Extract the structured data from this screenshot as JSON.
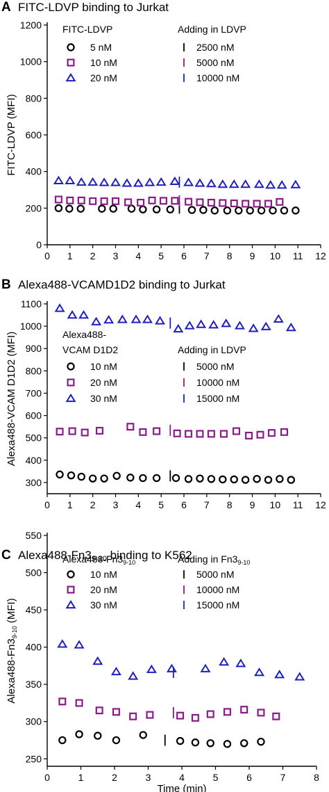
{
  "chart_data": [
    {
      "type": "scatter",
      "panel_label": "A",
      "title": "FITC-LDVP binding to Jurkat",
      "xlabel": "",
      "ylabel": "FITC-LDVP (MFI)",
      "xlim": [
        0,
        12
      ],
      "ylim": [
        0,
        1200
      ],
      "xticks": [
        0,
        1,
        2,
        3,
        4,
        5,
        6,
        7,
        8,
        9,
        10,
        11,
        12
      ],
      "yticks": [
        0,
        200,
        400,
        600,
        800,
        1000,
        1200
      ],
      "legend": {
        "left_title": "FITC-LDVP",
        "right_title": "Adding in LDVP",
        "rows": [
          {
            "color": "#000000",
            "label": "5 nM",
            "add_label": "2500 nM"
          },
          {
            "color": "#8b1a89",
            "label": "10 nM",
            "add_label": "5000 nM"
          },
          {
            "color": "#1f1fbf",
            "label": "20 nM",
            "add_label": "10000 nM"
          }
        ]
      },
      "series": [
        {
          "name": "5 nM",
          "marker": "circle",
          "color": "#000000",
          "x": [
            0.5,
            0.97,
            1.47,
            2.4,
            2.9,
            3.7,
            4.2,
            4.8,
            5.4,
            6.35,
            6.85,
            7.35,
            7.9,
            8.4,
            8.9,
            9.4,
            9.9,
            10.4,
            10.9
          ],
          "y": [
            200,
            197,
            197,
            197,
            197,
            197,
            193,
            193,
            193,
            190,
            190,
            187,
            187,
            187,
            187,
            187,
            187,
            187,
            187
          ]
        },
        {
          "name": "10 nM",
          "marker": "square",
          "color": "#8b1a89",
          "x": [
            0.5,
            1.0,
            1.5,
            2.0,
            2.5,
            3.0,
            3.55,
            4.1,
            4.6,
            5.1,
            5.6,
            6.2,
            6.7,
            7.2,
            7.7,
            8.2,
            8.7,
            9.2,
            9.7,
            10.2
          ],
          "y": [
            247,
            242,
            242,
            238,
            238,
            238,
            232,
            230,
            242,
            240,
            240,
            235,
            232,
            230,
            228,
            226,
            224,
            224,
            224,
            234
          ]
        },
        {
          "name": "20 nM",
          "marker": "triangle",
          "color": "#1f1fbf",
          "x": [
            0.5,
            1.0,
            1.5,
            2.0,
            2.5,
            3.0,
            3.5,
            4.0,
            4.5,
            5.0,
            5.6,
            6.2,
            6.7,
            7.2,
            7.7,
            8.2,
            8.7,
            9.3,
            9.8,
            10.3,
            10.9
          ],
          "y": [
            350,
            350,
            342,
            342,
            340,
            340,
            336,
            336,
            340,
            342,
            346,
            340,
            336,
            334,
            330,
            330,
            330,
            330,
            326,
            326,
            328
          ]
        }
      ],
      "additions": [
        {
          "x": 5.8,
          "y": 200,
          "color": "#000000"
        },
        {
          "x": 5.8,
          "y": 240,
          "color": "#8b1a89"
        },
        {
          "x": 5.8,
          "y": 342,
          "color": "#1f1fbf"
        }
      ]
    },
    {
      "type": "scatter",
      "panel_label": "B",
      "title": "Alexa488-VCAMD1D2 binding to Jurkat",
      "xlabel": "",
      "ylabel": "Alexa488-VCAM D1D2 (MFI)",
      "xlim": [
        0,
        12
      ],
      "ylim": [
        250,
        1100
      ],
      "xticks": [
        0,
        1,
        2,
        3,
        4,
        5,
        6,
        7,
        8,
        9,
        10,
        11,
        12
      ],
      "yticks": [
        300,
        400,
        500,
        600,
        700,
        800,
        900,
        1000,
        1100
      ],
      "legend": {
        "left_title": "Alexa488-",
        "left_title_2": "VCAM D1D2",
        "right_title": "Adding in LDVP",
        "rows": [
          {
            "color": "#000000",
            "label": "10 nM",
            "add_label": "5000 nM"
          },
          {
            "color": "#8b1a89",
            "label": "20 nM",
            "add_label": "10000 nM"
          },
          {
            "color": "#1f1fbf",
            "label": "30 nM",
            "add_label": "15000 nM"
          }
        ]
      },
      "series": [
        {
          "name": "10 nM",
          "marker": "circle",
          "color": "#000000",
          "x": [
            0.55,
            1.05,
            1.5,
            2.0,
            2.5,
            3.05,
            3.65,
            4.2,
            4.8,
            5.65,
            6.2,
            6.7,
            7.2,
            7.7,
            8.2,
            8.7,
            9.2,
            9.7,
            10.2,
            10.7
          ],
          "y": [
            336,
            332,
            326,
            318,
            318,
            330,
            322,
            320,
            320,
            320,
            316,
            318,
            316,
            314,
            314,
            312,
            316,
            312,
            316,
            312
          ]
        },
        {
          "name": "20 nM",
          "marker": "square",
          "color": "#8b1a89",
          "x": [
            0.55,
            1.1,
            1.65,
            2.3,
            3.65,
            4.2,
            4.8,
            5.7,
            6.2,
            6.7,
            7.2,
            7.75,
            8.3,
            8.85,
            9.35,
            9.85,
            10.4
          ],
          "y": [
            528,
            530,
            524,
            532,
            550,
            526,
            530,
            520,
            518,
            518,
            518,
            518,
            530,
            510,
            514,
            522,
            526
          ]
        },
        {
          "name": "30 nM",
          "marker": "triangle",
          "color": "#1f1fbf",
          "x": [
            0.55,
            1.1,
            1.6,
            2.15,
            2.7,
            3.3,
            3.9,
            4.4,
            4.95,
            5.75,
            6.25,
            6.75,
            7.3,
            7.85,
            8.45,
            9.05,
            9.6,
            10.15,
            10.7
          ],
          "y": [
            1080,
            1050,
            1050,
            1020,
            1028,
            1030,
            1030,
            1030,
            1024,
            988,
            1002,
            1008,
            1006,
            1012,
            1002,
            990,
            998,
            1032,
            994
          ]
        }
      ],
      "additions": [
        {
          "x": 5.4,
          "y": 330,
          "color": "#000000"
        },
        {
          "x": 5.4,
          "y": 534,
          "color": "#8b1a89"
        },
        {
          "x": 5.4,
          "y": 1014,
          "color": "#1f1fbf"
        }
      ]
    },
    {
      "type": "scatter",
      "panel_label": "C",
      "title": "Alexa488-Fn3",
      "title_sub": "9-10",
      "title_suffix": " binding to K562",
      "xlabel": "Time (min)",
      "ylabel": "Alexa488-Fn3",
      "ylabel_sub": "9-10",
      "ylabel_suffix": " (MFI)",
      "xlim": [
        0,
        8
      ],
      "ylim": [
        240,
        550
      ],
      "xticks": [
        0,
        1,
        2,
        3,
        4,
        5,
        6,
        7,
        8
      ],
      "yticks": [
        250,
        300,
        350,
        400,
        450,
        500,
        550
      ],
      "legend": {
        "left_title": "Alexa488-Fn3",
        "left_title_sub": "9-10",
        "right_title": "Adding in Fn3",
        "right_title_sub": "9-10",
        "rows": [
          {
            "color": "#000000",
            "label": "10 nM",
            "add_label": "5000 nM"
          },
          {
            "color": "#8b1a89",
            "label": "20 nM",
            "add_label": "10000 nM"
          },
          {
            "color": "#1f1fbf",
            "label": "30 nM",
            "add_label": "15000 nM"
          }
        ]
      },
      "series": [
        {
          "name": "10 nM",
          "marker": "circle",
          "color": "#000000",
          "x": [
            0.45,
            0.95,
            1.5,
            2.05,
            2.85,
            3.95,
            4.4,
            4.85,
            5.35,
            5.85,
            6.35
          ],
          "y": [
            275,
            283,
            281,
            275,
            282,
            274,
            272,
            271,
            270,
            271,
            273
          ]
        },
        {
          "name": "20 nM",
          "marker": "square",
          "color": "#8b1a89",
          "x": [
            0.45,
            0.95,
            1.55,
            2.05,
            2.55,
            3.05,
            3.95,
            4.4,
            4.85,
            5.35,
            5.85,
            6.35,
            6.8
          ],
          "y": [
            327,
            325,
            315,
            313,
            307,
            309,
            308,
            305,
            310,
            313,
            316,
            312,
            307
          ]
        },
        {
          "name": "30 nM",
          "marker": "triangle",
          "color": "#1f1fbf",
          "x": [
            0.45,
            0.95,
            1.5,
            2.05,
            2.55,
            3.1,
            3.7,
            4.7,
            5.25,
            5.75,
            6.3,
            6.9,
            7.5
          ],
          "y": [
            404,
            403,
            381,
            367,
            361,
            370,
            371,
            371,
            380,
            378,
            366,
            363,
            360
          ]
        }
      ],
      "additions": [
        {
          "x": 3.5,
          "y": 275,
          "color": "#000000"
        },
        {
          "x": 3.75,
          "y": 312,
          "color": "#8b1a89"
        },
        {
          "x": 3.75,
          "y": 366,
          "color": "#1f1fbf"
        }
      ]
    }
  ]
}
